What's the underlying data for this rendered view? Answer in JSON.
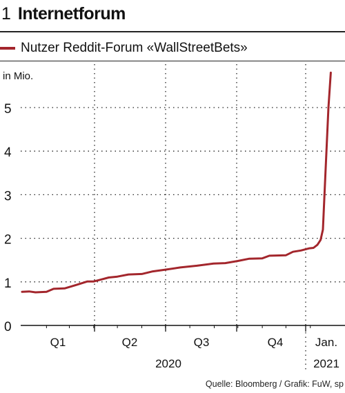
{
  "figure": {
    "number": "1",
    "title": "Internetforum",
    "source": "Quelle: Bloomberg / Grafik: FuW, sp"
  },
  "colors": {
    "series": "#a3262c",
    "grid": "#222222"
  },
  "chart_data": {
    "type": "line",
    "title": "Internetforum",
    "ylabel": "in Mio.",
    "ylim": [
      0,
      6
    ],
    "yticks": [
      "0",
      "1",
      "2",
      "3",
      "4",
      "5"
    ],
    "x_quarters": [
      "Q1",
      "Q2",
      "Q3",
      "Q4",
      "Jan."
    ],
    "x_years": [
      "2020",
      "2021"
    ],
    "x_domain": [
      "2020-01-01",
      "2021-01-31"
    ],
    "grid": "dotted vertical at quarter boundaries, dotted horizontal at integer values",
    "legend": "top-left",
    "series": [
      {
        "name": "Nutzer Reddit-Forum «WallStreetBets»",
        "points": [
          [
            "2020-01-01",
            0.77
          ],
          [
            "2020-01-10",
            0.78
          ],
          [
            "2020-01-18",
            0.76
          ],
          [
            "2020-02-01",
            0.77
          ],
          [
            "2020-02-10",
            0.84
          ],
          [
            "2020-02-24",
            0.85
          ],
          [
            "2020-03-10",
            0.93
          ],
          [
            "2020-03-24",
            1.01
          ],
          [
            "2020-04-01",
            1.01
          ],
          [
            "2020-04-10",
            1.05
          ],
          [
            "2020-04-20",
            1.1
          ],
          [
            "2020-05-01",
            1.12
          ],
          [
            "2020-05-15",
            1.17
          ],
          [
            "2020-06-01",
            1.18
          ],
          [
            "2020-06-15",
            1.24
          ],
          [
            "2020-07-01",
            1.28
          ],
          [
            "2020-07-20",
            1.33
          ],
          [
            "2020-08-10",
            1.37
          ],
          [
            "2020-08-31",
            1.42
          ],
          [
            "2020-09-15",
            1.43
          ],
          [
            "2020-10-01",
            1.48
          ],
          [
            "2020-10-15",
            1.53
          ],
          [
            "2020-11-01",
            1.54
          ],
          [
            "2020-11-10",
            1.6
          ],
          [
            "2020-12-01",
            1.61
          ],
          [
            "2020-12-10",
            1.69
          ],
          [
            "2020-12-20",
            1.72
          ],
          [
            "2020-12-31",
            1.77
          ],
          [
            "2021-01-05",
            1.78
          ],
          [
            "2021-01-10",
            1.85
          ],
          [
            "2021-01-14",
            1.96
          ],
          [
            "2021-01-17",
            2.2
          ],
          [
            "2021-01-20",
            3.4
          ],
          [
            "2021-01-24",
            5.0
          ],
          [
            "2021-01-27",
            5.8
          ]
        ]
      }
    ]
  }
}
